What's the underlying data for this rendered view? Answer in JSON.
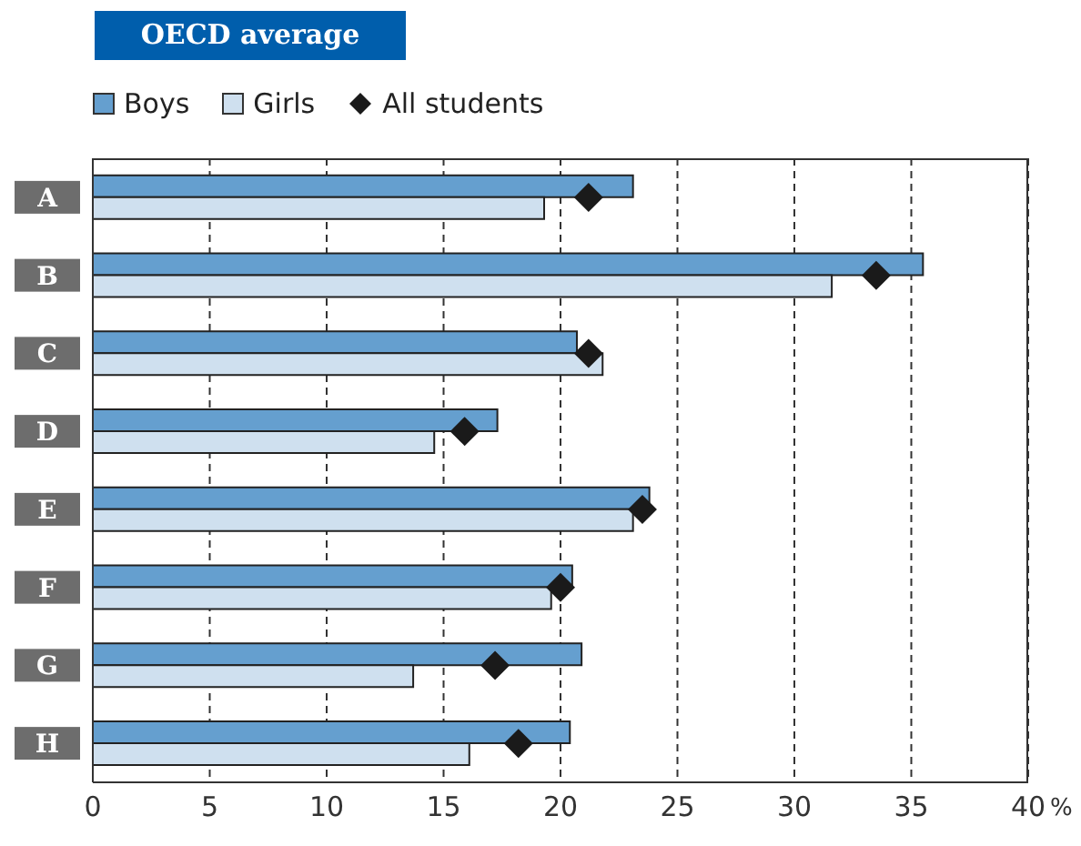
{
  "chart_data": {
    "type": "bar",
    "orientation": "horizontal",
    "title": "OECD average",
    "xlabel": "%",
    "categories": [
      "A",
      "B",
      "C",
      "D",
      "E",
      "F",
      "G",
      "H"
    ],
    "series": [
      {
        "name": "Boys",
        "color": "#659fcf",
        "values": [
          23.1,
          35.5,
          20.7,
          17.3,
          23.8,
          20.5,
          20.9,
          20.4
        ]
      },
      {
        "name": "Girls",
        "color": "#cfe0ef",
        "values": [
          19.3,
          31.6,
          21.8,
          14.6,
          23.1,
          19.6,
          13.7,
          16.1
        ]
      },
      {
        "name": "All students",
        "type": "scatter",
        "marker": "diamond",
        "color": "#1a1a1a",
        "values": [
          21.2,
          33.5,
          21.2,
          15.9,
          23.5,
          20.0,
          17.2,
          18.2
        ]
      }
    ],
    "xlim": [
      0,
      40
    ],
    "xticks": [
      0,
      5,
      10,
      15,
      20,
      25,
      30,
      35,
      40
    ],
    "grid": "x",
    "legend": "top left"
  }
}
